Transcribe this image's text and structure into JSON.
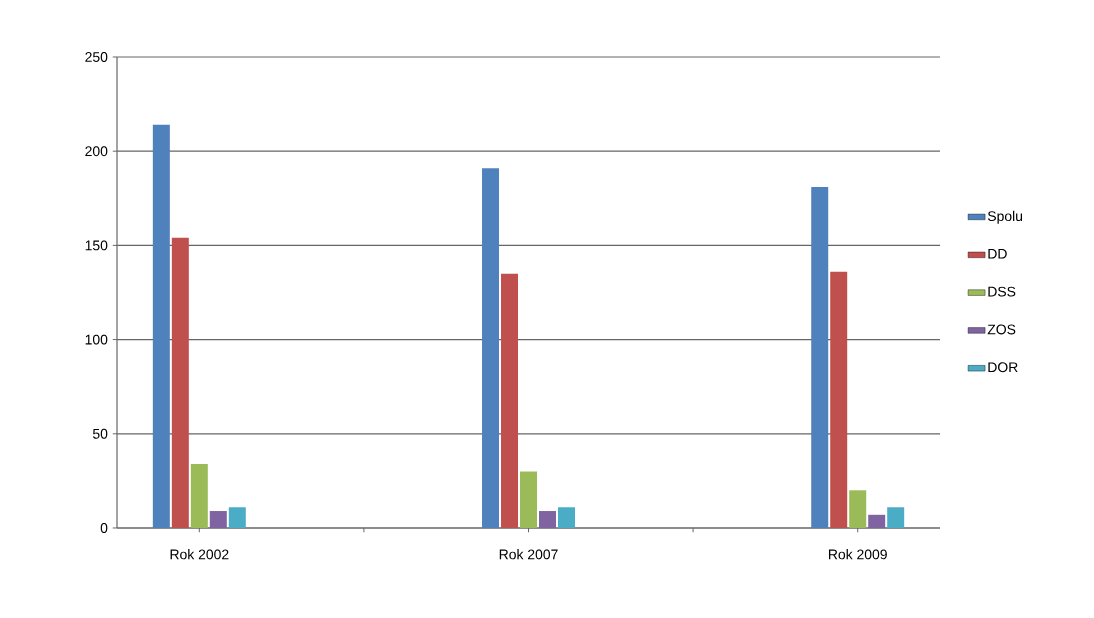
{
  "chart_data": {
    "type": "bar",
    "categories": [
      "Rok 2002",
      null,
      "Rok 2007",
      null,
      "Rok 2009"
    ],
    "series": [
      {
        "name": "Spolu",
        "color": "#4f81bd",
        "values": [
          214,
          0,
          191,
          0,
          181
        ]
      },
      {
        "name": "DD",
        "color": "#c0504d",
        "values": [
          154,
          0,
          135,
          0,
          136
        ]
      },
      {
        "name": "DSS",
        "color": "#9bbb59",
        "values": [
          34,
          0,
          30,
          0,
          20
        ]
      },
      {
        "name": "ZOS",
        "color": "#8064a2",
        "values": [
          9,
          0,
          9,
          0,
          7
        ]
      },
      {
        "name": "DOR",
        "color": "#4bacc6",
        "values": [
          11,
          0,
          11,
          0,
          11
        ]
      }
    ],
    "ylim": [
      0,
      250
    ],
    "yticks": [
      0,
      50,
      100,
      150,
      200,
      250
    ],
    "grid": "y",
    "legend": "right"
  }
}
